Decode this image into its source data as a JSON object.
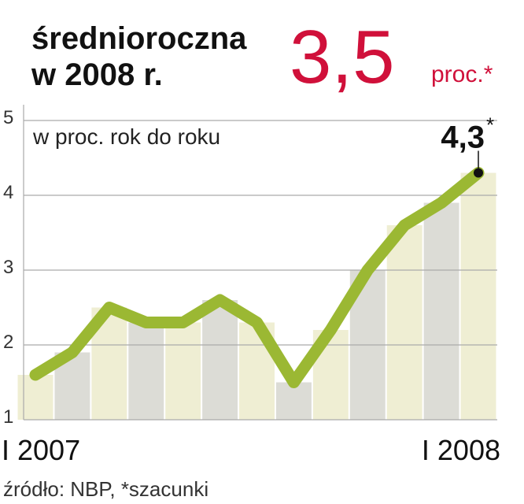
{
  "headline": {
    "line1": "średnioroczna",
    "line2": "w 2008 r.",
    "value": "3,5",
    "unit": "proc.*"
  },
  "chart_data": {
    "type": "line",
    "subtitle": "w proc. rok do roku",
    "categories": [
      "I 2007",
      null,
      null,
      null,
      null,
      null,
      null,
      null,
      null,
      null,
      null,
      null,
      "I 2008"
    ],
    "values": [
      1.6,
      1.9,
      2.5,
      2.3,
      2.3,
      2.6,
      2.3,
      1.5,
      2.2,
      3.0,
      3.6,
      3.9,
      4.3
    ],
    "value_labels": [
      null,
      null,
      null,
      null,
      null,
      null,
      null,
      null,
      null,
      null,
      null,
      null,
      "4,3"
    ],
    "value_label_note": "*",
    "color": "#9bb833",
    "bar_colors": [
      "#efeed3",
      "#dcdcd6"
    ],
    "ylim": [
      1,
      5
    ],
    "yticks": [
      1,
      2,
      3,
      4,
      5
    ],
    "grid": true
  },
  "source": "źródło: NBP, *szacunki"
}
